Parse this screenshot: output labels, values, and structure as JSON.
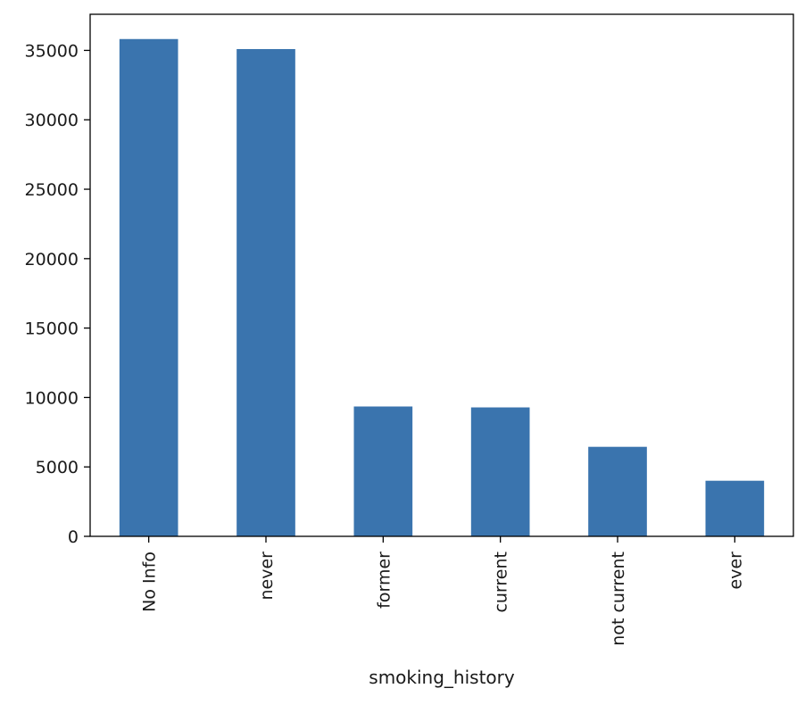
{
  "chart_data": {
    "type": "bar",
    "categories": [
      "No Info",
      "never",
      "former",
      "current",
      "not current",
      "ever"
    ],
    "values": [
      35816,
      35095,
      9352,
      9286,
      6447,
      4004
    ],
    "title": "",
    "xlabel": "smoking_history",
    "ylabel": "",
    "ylim": [
      0,
      37600
    ],
    "yticks": [
      0,
      5000,
      10000,
      15000,
      20000,
      25000,
      30000,
      35000
    ],
    "bar_color": "#3a74ae",
    "grid": false,
    "legend": "none"
  }
}
